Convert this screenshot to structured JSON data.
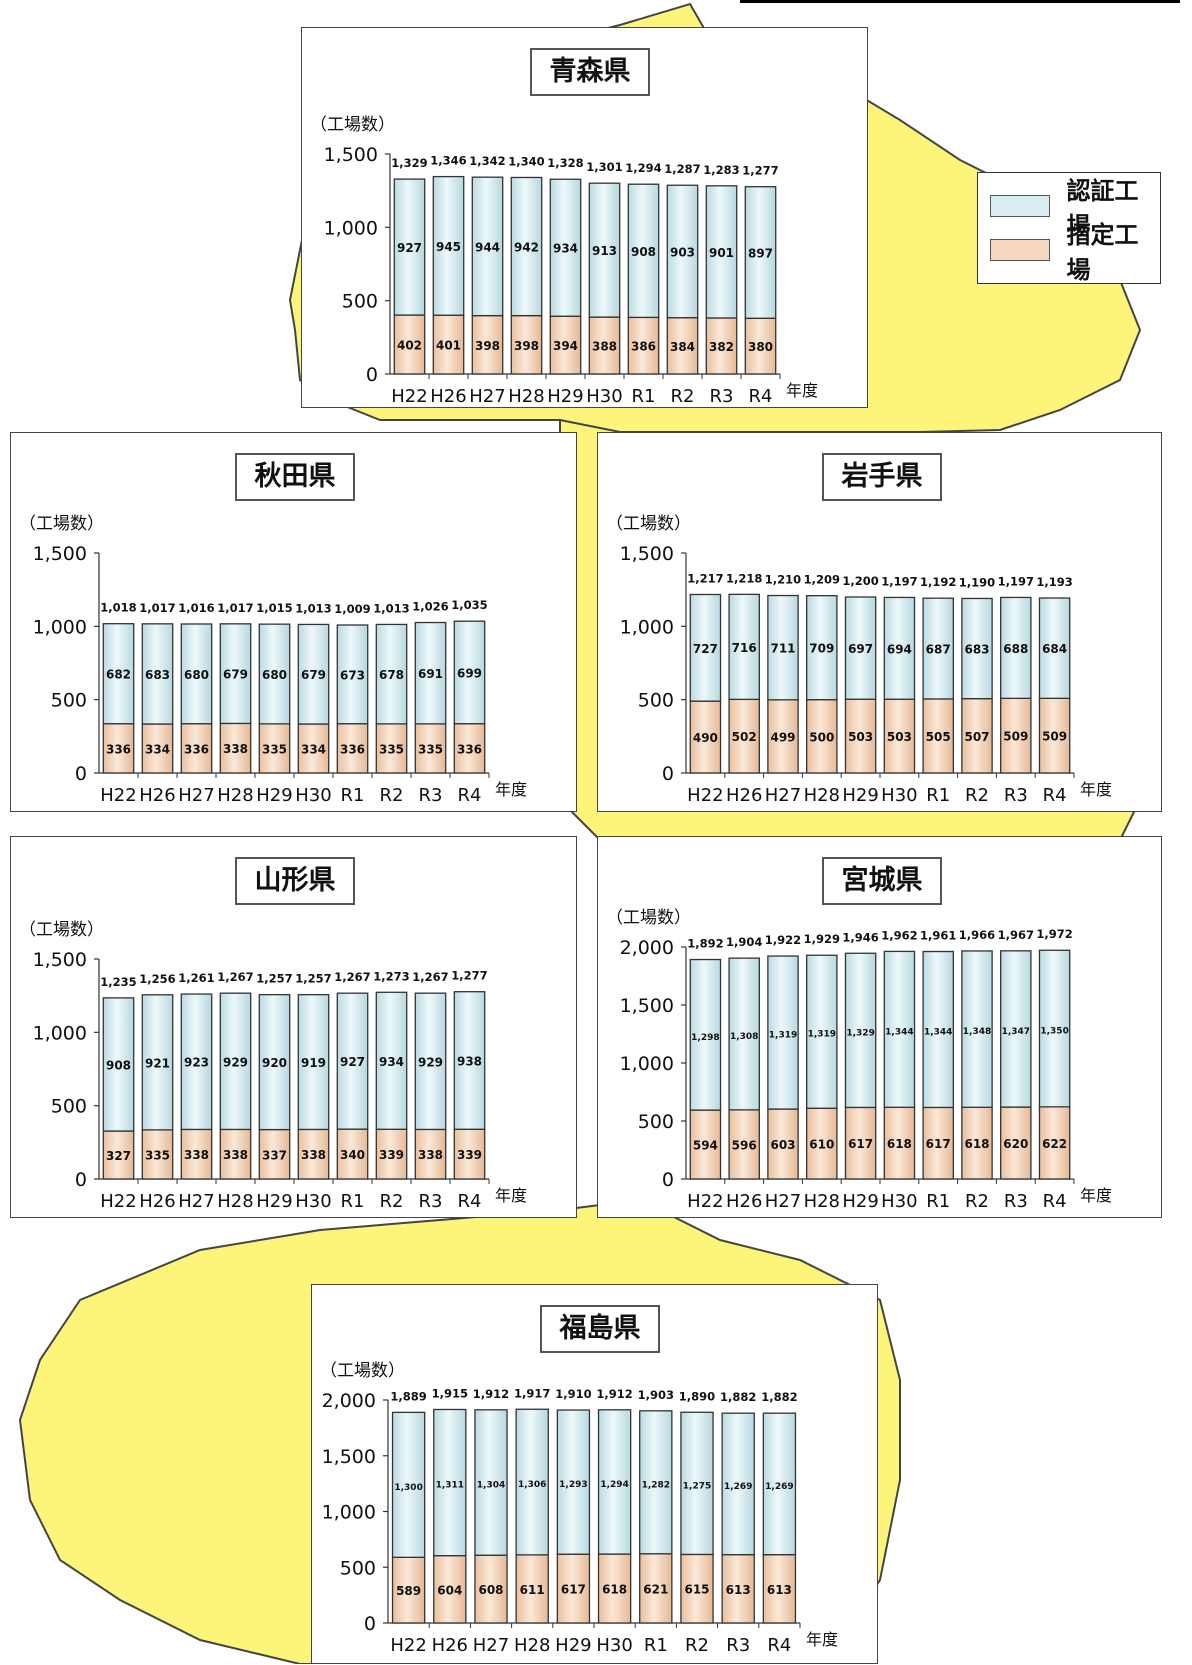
{
  "legend": {
    "certified_label": "認証工場",
    "designated_label": "指定工場",
    "certified_color": "#d9eef2",
    "designated_color": "#f5d7bf"
  },
  "map_color": "#fdf57a",
  "chart_data": [
    {
      "type": "bar",
      "title": "青森県",
      "ylabel": "（工場数）",
      "xlabel": "年度",
      "categories": [
        "H22",
        "H26",
        "H27",
        "H28",
        "H29",
        "H30",
        "R1",
        "R2",
        "R3",
        "R4"
      ],
      "yticks": [
        "0",
        "500",
        "1,000",
        "1,500"
      ],
      "ylim": [
        0,
        1500
      ],
      "series": [
        {
          "name": "指定工場",
          "values": [
            402,
            401,
            398,
            398,
            394,
            388,
            386,
            384,
            382,
            380
          ]
        },
        {
          "name": "認証工場",
          "values": [
            927,
            945,
            944,
            942,
            934,
            913,
            908,
            903,
            901,
            897
          ]
        }
      ],
      "totals": [
        1329,
        1346,
        1342,
        1340,
        1328,
        1301,
        1294,
        1287,
        1283,
        1277
      ],
      "designated_labels": [
        "402",
        "401",
        "398",
        "398",
        "394",
        "388",
        "386",
        "384",
        "382",
        "380"
      ],
      "certified_labels": [
        "927",
        "945",
        "944",
        "942",
        "934",
        "913",
        "908",
        "903",
        "901",
        "897"
      ],
      "total_labels": [
        "1,329",
        "1,346",
        "1,342",
        "1,340",
        "1,328",
        "1,301",
        "1,294",
        "1,287",
        "1,283",
        "1,277"
      ]
    },
    {
      "type": "bar",
      "title": "秋田県",
      "ylabel": "（工場数）",
      "xlabel": "年度",
      "categories": [
        "H22",
        "H26",
        "H27",
        "H28",
        "H29",
        "H30",
        "R1",
        "R2",
        "R3",
        "R4"
      ],
      "yticks": [
        "0",
        "500",
        "1,000",
        "1,500"
      ],
      "ylim": [
        0,
        1500
      ],
      "series": [
        {
          "name": "指定工場",
          "values": [
            336,
            334,
            336,
            338,
            335,
            334,
            336,
            335,
            335,
            336
          ]
        },
        {
          "name": "認証工場",
          "values": [
            682,
            683,
            680,
            679,
            680,
            679,
            673,
            678,
            691,
            699
          ]
        }
      ],
      "totals": [
        1018,
        1017,
        1016,
        1017,
        1015,
        1013,
        1009,
        1013,
        1026,
        1035
      ],
      "designated_labels": [
        "336",
        "334",
        "336",
        "338",
        "335",
        "334",
        "336",
        "335",
        "335",
        "336"
      ],
      "certified_labels": [
        "682",
        "683",
        "680",
        "679",
        "680",
        "679",
        "673",
        "678",
        "691",
        "699"
      ],
      "total_labels": [
        "1,018",
        "1,017",
        "1,016",
        "1,017",
        "1,015",
        "1,013",
        "1,009",
        "1,013",
        "1,026",
        "1,035"
      ]
    },
    {
      "type": "bar",
      "title": "岩手県",
      "ylabel": "（工場数）",
      "xlabel": "年度",
      "categories": [
        "H22",
        "H26",
        "H27",
        "H28",
        "H29",
        "H30",
        "R1",
        "R2",
        "R3",
        "R4"
      ],
      "yticks": [
        "0",
        "500",
        "1,000",
        "1,500"
      ],
      "ylim": [
        0,
        1500
      ],
      "series": [
        {
          "name": "指定工場",
          "values": [
            490,
            502,
            499,
            500,
            503,
            503,
            505,
            507,
            509,
            509
          ]
        },
        {
          "name": "認証工場",
          "values": [
            727,
            716,
            711,
            709,
            697,
            694,
            687,
            683,
            688,
            684
          ]
        }
      ],
      "totals": [
        1217,
        1218,
        1210,
        1209,
        1200,
        1197,
        1192,
        1190,
        1197,
        1193
      ],
      "designated_labels": [
        "490",
        "502",
        "499",
        "500",
        "503",
        "503",
        "505",
        "507",
        "509",
        "509"
      ],
      "certified_labels": [
        "727",
        "716",
        "711",
        "709",
        "697",
        "694",
        "687",
        "683",
        "688",
        "684"
      ],
      "total_labels": [
        "1,217",
        "1,218",
        "1,210",
        "1,209",
        "1,200",
        "1,197",
        "1,192",
        "1,190",
        "1,197",
        "1,193"
      ]
    },
    {
      "type": "bar",
      "title": "山形県",
      "ylabel": "（工場数）",
      "xlabel": "年度",
      "categories": [
        "H22",
        "H26",
        "H27",
        "H28",
        "H29",
        "H30",
        "R1",
        "R2",
        "R3",
        "R4"
      ],
      "yticks": [
        "0",
        "500",
        "1,000",
        "1,500"
      ],
      "ylim": [
        0,
        1500
      ],
      "series": [
        {
          "name": "指定工場",
          "values": [
            327,
            335,
            338,
            338,
            337,
            338,
            340,
            339,
            338,
            339
          ]
        },
        {
          "name": "認証工場",
          "values": [
            908,
            921,
            923,
            929,
            920,
            919,
            927,
            934,
            929,
            938
          ]
        }
      ],
      "totals": [
        1235,
        1256,
        1261,
        1267,
        1257,
        1257,
        1267,
        1273,
        1267,
        1277
      ],
      "designated_labels": [
        "327",
        "335",
        "338",
        "338",
        "337",
        "338",
        "340",
        "339",
        "338",
        "339"
      ],
      "certified_labels": [
        "908",
        "921",
        "923",
        "929",
        "920",
        "919",
        "927",
        "934",
        "929",
        "938"
      ],
      "total_labels": [
        "1,235",
        "1,256",
        "1,261",
        "1,267",
        "1,257",
        "1,257",
        "1,267",
        "1,273",
        "1,267",
        "1,277"
      ]
    },
    {
      "type": "bar",
      "title": "宮城県",
      "ylabel": "（工場数）",
      "xlabel": "年度",
      "categories": [
        "H22",
        "H26",
        "H27",
        "H28",
        "H29",
        "H30",
        "R1",
        "R2",
        "R3",
        "R4"
      ],
      "yticks": [
        "0",
        "500",
        "1,000",
        "1,500",
        "2,000"
      ],
      "ylim": [
        0,
        2000
      ],
      "series": [
        {
          "name": "指定工場",
          "values": [
            594,
            596,
            603,
            610,
            617,
            618,
            617,
            618,
            620,
            622
          ]
        },
        {
          "name": "認証工場",
          "values": [
            1298,
            1308,
            1319,
            1319,
            1329,
            1344,
            1344,
            1348,
            1347,
            1350
          ]
        }
      ],
      "totals": [
        1892,
        1904,
        1922,
        1929,
        1946,
        1962,
        1961,
        1966,
        1967,
        1972
      ],
      "designated_labels": [
        "594",
        "596",
        "603",
        "610",
        "617",
        "618",
        "617",
        "618",
        "620",
        "622"
      ],
      "certified_labels": [
        "1,298",
        "1,308",
        "1,319",
        "1,319",
        "1,329",
        "1,344",
        "1,344",
        "1,348",
        "1,347",
        "1,350"
      ],
      "total_labels": [
        "1,892",
        "1,904",
        "1,922",
        "1,929",
        "1,946",
        "1,962",
        "1,961",
        "1,966",
        "1,967",
        "1,972"
      ]
    },
    {
      "type": "bar",
      "title": "福島県",
      "ylabel": "（工場数）",
      "xlabel": "年度",
      "categories": [
        "H22",
        "H26",
        "H27",
        "H28",
        "H29",
        "H30",
        "R1",
        "R2",
        "R3",
        "R4"
      ],
      "yticks": [
        "0",
        "500",
        "1,000",
        "1,500",
        "2,000"
      ],
      "ylim": [
        0,
        2000
      ],
      "series": [
        {
          "name": "指定工場",
          "values": [
            589,
            604,
            608,
            611,
            617,
            618,
            621,
            615,
            613,
            613
          ]
        },
        {
          "name": "認証工場",
          "values": [
            1300,
            1311,
            1304,
            1306,
            1293,
            1294,
            1282,
            1275,
            1269,
            1269
          ]
        }
      ],
      "totals": [
        1889,
        1915,
        1912,
        1917,
        1910,
        1912,
        1903,
        1890,
        1882,
        1882
      ],
      "designated_labels": [
        "589",
        "604",
        "608",
        "611",
        "617",
        "618",
        "621",
        "615",
        "613",
        "613"
      ],
      "certified_labels": [
        "1,300",
        "1,311",
        "1,304",
        "1,306",
        "1,293",
        "1,294",
        "1,282",
        "1,275",
        "1,269",
        "1,269"
      ],
      "total_labels": [
        "1,889",
        "1,915",
        "1,912",
        "1,917",
        "1,910",
        "1,912",
        "1,903",
        "1,890",
        "1,882",
        "1,882"
      ]
    }
  ]
}
